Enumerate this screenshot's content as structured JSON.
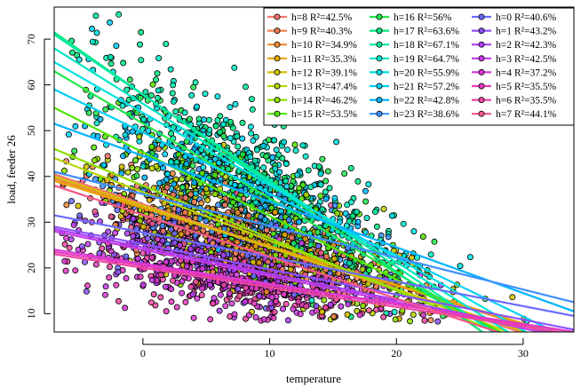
{
  "chart_data": {
    "type": "scatter",
    "title": "",
    "xlabel": "temperature",
    "ylabel": "load, feeder 26",
    "xlim": [
      -7,
      34
    ],
    "ylim": [
      6,
      77
    ],
    "x_ticks": [
      0,
      10,
      20,
      30
    ],
    "y_ticks": [
      10,
      20,
      30,
      40,
      50,
      60,
      70
    ],
    "legend_position": "top-right",
    "grid": false,
    "series": [
      {
        "name": "h=8 R²=42.5%",
        "hour": 8,
        "color": "#F8766D",
        "line": {
          "x0": -7,
          "y0": 40.5,
          "x1": 34,
          "y1": 2.0
        }
      },
      {
        "name": "h=9 R²=40.3%",
        "hour": 9,
        "color": "#F47F52",
        "line": {
          "x0": -7,
          "y0": 40.0,
          "x1": 34,
          "y1": 2.5
        }
      },
      {
        "name": "h=10 R²=34.9%",
        "hour": 10,
        "color": "#EF8A30",
        "line": {
          "x0": -7,
          "y0": 39.5,
          "x1": 34,
          "y1": 4.0
        }
      },
      {
        "name": "h=11 R²=35.3%",
        "hour": 11,
        "color": "#E6A400",
        "line": {
          "x0": -7,
          "y0": 39.0,
          "x1": 34,
          "y1": 4.5
        }
      },
      {
        "name": "h=12 R²=39.1%",
        "hour": 12,
        "color": "#D3C000",
        "line": {
          "x0": -7,
          "y0": 40.0,
          "x1": 34,
          "y1": 2.5
        }
      },
      {
        "name": "h=13 R²=47.4%",
        "hour": 13,
        "color": "#B8D500",
        "line": {
          "x0": -7,
          "y0": 44.0,
          "x1": 34,
          "y1": 0.5
        }
      },
      {
        "name": "h=14 R²=46.2%",
        "hour": 14,
        "color": "#8DE000",
        "line": {
          "x0": -7,
          "y0": 46.0,
          "x1": 34,
          "y1": -1.0
        }
      },
      {
        "name": "h=15 R²=53.5%",
        "hour": 15,
        "color": "#4FE600",
        "line": {
          "x0": -7,
          "y0": 55.0,
          "x1": 34,
          "y1": -2.0
        }
      },
      {
        "name": "h=16 R²=56%",
        "hour": 16,
        "color": "#22E84A",
        "line": {
          "x0": -7,
          "y0": 63.0,
          "x1": 34,
          "y1": -4.0
        }
      },
      {
        "name": "h=17 R²=63.6%",
        "hour": 17,
        "color": "#00EA7E",
        "line": {
          "x0": -7,
          "y0": 71.5,
          "x1": 34,
          "y1": -8.0
        }
      },
      {
        "name": "h=18 R²=67.1%",
        "hour": 18,
        "color": "#00EAA4",
        "line": {
          "x0": -7,
          "y0": 71.0,
          "x1": 34,
          "y1": -6.0
        }
      },
      {
        "name": "h=19 R²=64.7%",
        "hour": 19,
        "color": "#00E8C6",
        "line": {
          "x0": -7,
          "y0": 68.0,
          "x1": 34,
          "y1": -3.0
        }
      },
      {
        "name": "h=20 R²=55.9%",
        "hour": 20,
        "color": "#00E2E2",
        "line": {
          "x0": -7,
          "y0": 65.0,
          "x1": 34,
          "y1": 0.0
        }
      },
      {
        "name": "h=21 R²=57.2%",
        "hour": 21,
        "color": "#00D0F6",
        "line": {
          "x0": -7,
          "y0": 59.0,
          "x1": 34,
          "y1": 4.0
        }
      },
      {
        "name": "h=22 R²=42.8%",
        "hour": 22,
        "color": "#00B4FF",
        "line": {
          "x0": -7,
          "y0": 51.5,
          "x1": 34,
          "y1": 10.5
        }
      },
      {
        "name": "h=23 R²=38.6%",
        "hour": 23,
        "color": "#3D90FF",
        "line": {
          "x0": -7,
          "y0": 41.0,
          "x1": 34,
          "y1": 12.5
        }
      },
      {
        "name": "h=0 R²=40.6%",
        "hour": 0,
        "color": "#6A6CFF",
        "line": {
          "x0": -7,
          "y0": 31.5,
          "x1": 34,
          "y1": 9.5
        }
      },
      {
        "name": "h=1 R²=43.2%",
        "hour": 1,
        "color": "#8C50FF",
        "line": {
          "x0": -7,
          "y0": 29.0,
          "x1": 34,
          "y1": 6.5
        }
      },
      {
        "name": "h=2 R²=42.3%",
        "hour": 2,
        "color": "#AD3DF5",
        "line": {
          "x0": -7,
          "y0": 28.5,
          "x1": 34,
          "y1": 5.0
        }
      },
      {
        "name": "h=3 R²=42.5%",
        "hour": 3,
        "color": "#C53AE8",
        "line": {
          "x0": -7,
          "y0": 28.0,
          "x1": 34,
          "y1": 4.5
        }
      },
      {
        "name": "h=4 R²=37.2%",
        "hour": 4,
        "color": "#D838D6",
        "line": {
          "x0": -7,
          "y0": 24.0,
          "x1": 34,
          "y1": 6.0
        }
      },
      {
        "name": "h=5 R²=35.5%",
        "hour": 5,
        "color": "#E639BE",
        "line": {
          "x0": -7,
          "y0": 23.5,
          "x1": 34,
          "y1": 6.0
        }
      },
      {
        "name": "h=6 R²=35.5%",
        "hour": 6,
        "color": "#EF45A2",
        "line": {
          "x0": -7,
          "y0": 23.0,
          "x1": 34,
          "y1": 5.5
        }
      },
      {
        "name": "h=7 R²=44.1%",
        "hour": 7,
        "color": "#F4568A",
        "line": {
          "x0": -7,
          "y0": 38.0,
          "x1": 34,
          "y1": 0.5
        }
      }
    ]
  }
}
